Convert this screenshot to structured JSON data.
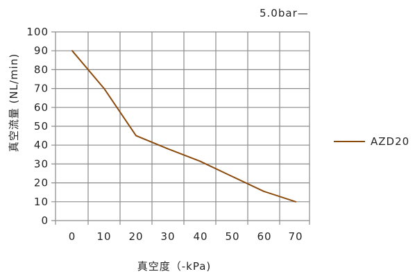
{
  "chart_data": {
    "type": "line",
    "title": "5.0bar—",
    "xlabel": "真空度（-kPa)",
    "ylabel": "真空流量 (NL/min)",
    "x_tick_labels": [
      "0",
      "10",
      "20",
      "30",
      "40",
      "50",
      "60",
      "70"
    ],
    "y_tick_labels": [
      "0",
      "10",
      "20",
      "30",
      "40",
      "50",
      "60",
      "70",
      "80",
      "90",
      "100"
    ],
    "ylim": [
      0,
      100
    ],
    "grid": true,
    "legend_position": "right",
    "series": [
      {
        "name": "AZD20",
        "color": "#8b4a0c",
        "x": [
          0,
          10,
          20,
          30,
          40,
          50,
          60,
          70
        ],
        "y": [
          90,
          70,
          45,
          38,
          31.5,
          23.5,
          15.5,
          10
        ]
      }
    ]
  }
}
